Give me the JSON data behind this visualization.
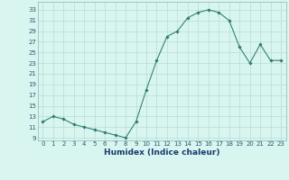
{
  "x": [
    0,
    1,
    2,
    3,
    4,
    5,
    6,
    7,
    8,
    9,
    10,
    11,
    12,
    13,
    14,
    15,
    16,
    17,
    18,
    19,
    20,
    21,
    22,
    23
  ],
  "y": [
    12,
    13,
    12.5,
    11.5,
    11,
    10.5,
    10,
    9.5,
    9,
    12,
    18,
    23.5,
    28,
    29,
    31.5,
    32.5,
    33,
    32.5,
    31,
    26,
    23,
    26.5,
    23.5,
    23.5
  ],
  "line_color": "#2d7a6e",
  "marker": "D",
  "marker_size": 1.8,
  "bg_color": "#d8f5f0",
  "grid_color": "#b8ddd6",
  "xlabel": "Humidex (Indice chaleur)",
  "xlabel_fontsize": 6.5,
  "ylabel_ticks": [
    9,
    11,
    13,
    15,
    17,
    19,
    21,
    23,
    25,
    27,
    29,
    31,
    33
  ],
  "xlim": [
    -0.5,
    23.5
  ],
  "ylim": [
    8.5,
    34.5
  ],
  "xticks": [
    0,
    1,
    2,
    3,
    4,
    5,
    6,
    7,
    8,
    9,
    10,
    11,
    12,
    13,
    14,
    15,
    16,
    17,
    18,
    19,
    20,
    21,
    22,
    23
  ],
  "tick_fontsize": 5.0,
  "tick_color": "#2d5a6e",
  "xlabel_color": "#1a3a6e",
  "spine_color": "#8abab0"
}
